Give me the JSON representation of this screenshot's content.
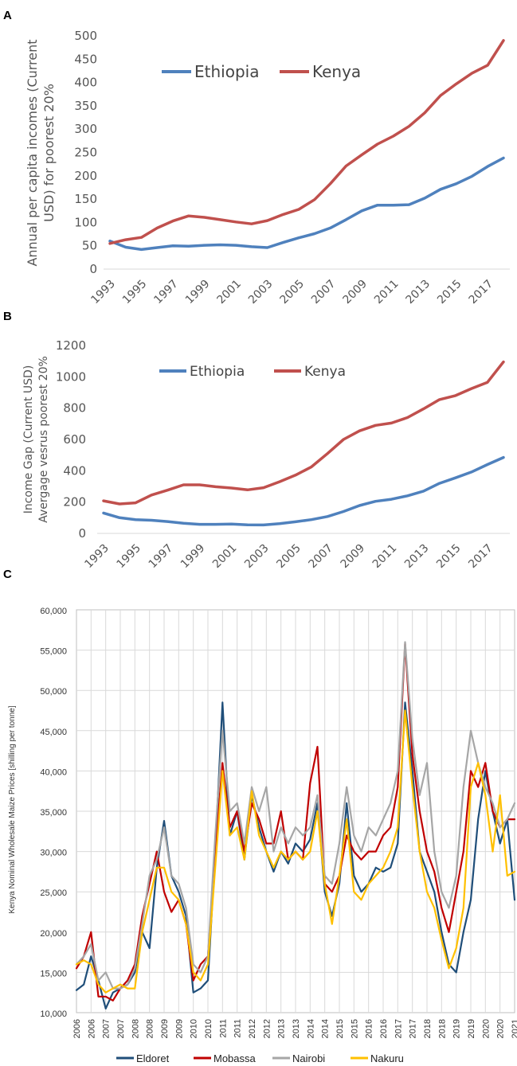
{
  "chart_data": [
    {
      "panel": "A",
      "type": "line",
      "title": "",
      "ylabel_lines": [
        "Annual per capita incomes (Current",
        "USD) for poorest 20%"
      ],
      "xlabel": "",
      "ylim": [
        0,
        500
      ],
      "yticks": [
        0,
        50,
        100,
        150,
        200,
        250,
        300,
        350,
        400,
        450,
        500
      ],
      "xlim": [
        1993,
        2018
      ],
      "xtick_labels": [
        "1993",
        "1995",
        "1997",
        "1999",
        "2001",
        "2003",
        "2005",
        "2007",
        "2009",
        "2011",
        "2013",
        "2015",
        "2017"
      ],
      "x": [
        1993,
        1994,
        1995,
        1996,
        1997,
        1998,
        1999,
        2000,
        2001,
        2002,
        2003,
        2004,
        2005,
        2006,
        2007,
        2008,
        2009,
        2010,
        2011,
        2012,
        2013,
        2014,
        2015,
        2016,
        2017,
        2018
      ],
      "series": [
        {
          "name": "Ethiopia",
          "color": "#4f81bd",
          "values": [
            60,
            47,
            42,
            46,
            50,
            49,
            51,
            52,
            51,
            48,
            46,
            57,
            67,
            76,
            88,
            106,
            125,
            137,
            137,
            138,
            152,
            171,
            183,
            199,
            220,
            238
          ]
        },
        {
          "name": "Kenya",
          "color": "#c0504d",
          "values": [
            55,
            63,
            68,
            88,
            103,
            114,
            111,
            106,
            101,
            97,
            104,
            117,
            128,
            149,
            183,
            221,
            245,
            268,
            285,
            306,
            335,
            372,
            397,
            420,
            437,
            490
          ]
        }
      ],
      "legend": "top-left"
    },
    {
      "panel": "B",
      "type": "line",
      "title": "",
      "ylabel_lines": [
        "Income Gap (Current USD)",
        "Avergage vesrus poorest 20%"
      ],
      "xlabel": "",
      "ylim": [
        0,
        1200
      ],
      "yticks": [
        0,
        200,
        400,
        600,
        800,
        1000,
        1200
      ],
      "xlim": [
        1993,
        2018
      ],
      "xtick_labels": [
        "1993",
        "1995",
        "1997",
        "1999",
        "2001",
        "2003",
        "2005",
        "2007",
        "2009",
        "2011",
        "2013",
        "2015",
        "2017"
      ],
      "x": [
        1993,
        1994,
        1995,
        1996,
        1997,
        1998,
        1999,
        2000,
        2001,
        2002,
        2003,
        2004,
        2005,
        2006,
        2007,
        2008,
        2009,
        2010,
        2011,
        2012,
        2013,
        2014,
        2015,
        2016,
        2017,
        2018
      ],
      "series": [
        {
          "name": "Ethiopia",
          "color": "#4f81bd",
          "values": [
            130,
            100,
            88,
            84,
            76,
            65,
            58,
            58,
            60,
            55,
            54,
            62,
            74,
            88,
            108,
            140,
            178,
            205,
            218,
            240,
            270,
            320,
            355,
            392,
            440,
            485
          ]
        },
        {
          "name": "Kenya",
          "color": "#c0504d",
          "values": [
            208,
            188,
            195,
            245,
            276,
            310,
            310,
            298,
            290,
            278,
            292,
            330,
            372,
            425,
            510,
            600,
            655,
            690,
            705,
            740,
            795,
            855,
            880,
            925,
            965,
            1095
          ]
        }
      ],
      "legend": "top-left"
    },
    {
      "panel": "C",
      "type": "line",
      "title": "",
      "ylabel": "Kenya Nominal Wholesale Maize Prices [shilling per tonne]",
      "xlabel": "",
      "ylim": [
        10000,
        60000
      ],
      "yticks": [
        10000,
        15000,
        20000,
        25000,
        30000,
        35000,
        40000,
        45000,
        50000,
        55000,
        60000
      ],
      "ytick_labels": [
        "10,000",
        "15,000",
        "20,000",
        "25,000",
        "30,000",
        "35,000",
        "40,000",
        "45,000",
        "50,000",
        "55,000",
        "60,000"
      ],
      "xlim": [
        2006.0,
        2021.0
      ],
      "xtick_labels": [
        "2006",
        "2006",
        "2007",
        "2007",
        "2008",
        "2008",
        "2009",
        "2009",
        "2010",
        "2010",
        "2011",
        "2011",
        "2012",
        "2012",
        "2013",
        "2013",
        "2014",
        "2014",
        "2015",
        "2015",
        "2016",
        "2016",
        "2017",
        "2017",
        "2018",
        "2018",
        "2019",
        "2019",
        "2020",
        "2020",
        "2021"
      ],
      "series": [
        {
          "name": "Eldoret",
          "color": "#1f4e79",
          "x": [
            2006.0,
            2006.25,
            2006.5,
            2006.75,
            2007.0,
            2007.25,
            2007.5,
            2007.75,
            2008.0,
            2008.25,
            2008.5,
            2008.75,
            2009.0,
            2009.25,
            2009.5,
            2009.75,
            2010.0,
            2010.25,
            2010.5,
            2010.75,
            2011.0,
            2011.25,
            2011.5,
            2011.75,
            2012.0,
            2012.25,
            2012.5,
            2012.75,
            2013.0,
            2013.25,
            2013.5,
            2013.75,
            2014.0,
            2014.25,
            2014.5,
            2014.75,
            2015.0,
            2015.25,
            2015.5,
            2015.75,
            2016.0,
            2016.25,
            2016.5,
            2016.75,
            2017.0,
            2017.25,
            2017.5,
            2017.75,
            2018.0,
            2018.25,
            2018.5,
            2018.75,
            2019.0,
            2019.25,
            2019.5,
            2019.75,
            2020.0,
            2020.25,
            2020.5,
            2020.75,
            2021.0
          ],
          "values": [
            12800,
            13500,
            17000,
            14000,
            10500,
            12500,
            13000,
            13500,
            15000,
            20000,
            18000,
            28000,
            33800,
            27000,
            25000,
            22000,
            12500,
            13000,
            14000,
            30000,
            48500,
            32000,
            35000,
            29000,
            37000,
            33000,
            30000,
            27500,
            30000,
            28500,
            31000,
            30000,
            31500,
            36000,
            25000,
            22000,
            26000,
            36000,
            27000,
            25000,
            26000,
            28000,
            27500,
            28000,
            31000,
            48500,
            40000,
            30000,
            27500,
            25000,
            20000,
            16000,
            15000,
            20000,
            24000,
            34000,
            40000,
            35000,
            31000,
            34000,
            24000
          ]
        },
        {
          "name": "Mobassa",
          "color": "#c00000",
          "x": [
            2006.0,
            2006.25,
            2006.5,
            2006.75,
            2007.0,
            2007.25,
            2007.5,
            2007.75,
            2008.0,
            2008.25,
            2008.5,
            2008.75,
            2009.0,
            2009.25,
            2009.5,
            2009.75,
            2010.0,
            2010.25,
            2010.5,
            2010.75,
            2011.0,
            2011.25,
            2011.5,
            2011.75,
            2012.0,
            2012.25,
            2012.5,
            2012.75,
            2013.0,
            2013.25,
            2013.5,
            2013.75,
            2014.0,
            2014.25,
            2014.5,
            2014.75,
            2015.0,
            2015.25,
            2015.5,
            2015.75,
            2016.0,
            2016.25,
            2016.5,
            2016.75,
            2017.0,
            2017.25,
            2017.5,
            2017.75,
            2018.0,
            2018.25,
            2018.5,
            2018.75,
            2019.0,
            2019.25,
            2019.5,
            2019.75,
            2020.0,
            2020.25,
            2020.5,
            2020.75,
            2021.0
          ],
          "values": [
            15500,
            17000,
            20000,
            12000,
            12000,
            11500,
            13000,
            14000,
            16000,
            22000,
            26000,
            30000,
            25000,
            22500,
            24000,
            21000,
            14000,
            16000,
            17000,
            30000,
            41000,
            33000,
            35000,
            30000,
            36000,
            34000,
            31000,
            31000,
            35000,
            29000,
            30000,
            29000,
            38500,
            43000,
            26000,
            25000,
            27000,
            32000,
            30000,
            29000,
            30000,
            30000,
            32000,
            33000,
            38000,
            55800,
            42000,
            35000,
            30000,
            27500,
            23000,
            20000,
            25000,
            30000,
            40000,
            38000,
            41000,
            35000,
            33000,
            34000,
            34000
          ]
        },
        {
          "name": "Nairobi",
          "color": "#a6a6a6",
          "x": [
            2006.0,
            2006.25,
            2006.5,
            2006.75,
            2007.0,
            2007.25,
            2007.5,
            2007.75,
            2008.0,
            2008.25,
            2008.5,
            2008.75,
            2009.0,
            2009.25,
            2009.5,
            2009.75,
            2010.0,
            2010.25,
            2010.5,
            2010.75,
            2011.0,
            2011.25,
            2011.5,
            2011.75,
            2012.0,
            2012.25,
            2012.5,
            2012.75,
            2013.0,
            2013.25,
            2013.5,
            2013.75,
            2014.0,
            2014.25,
            2014.5,
            2014.75,
            2015.0,
            2015.25,
            2015.5,
            2015.75,
            2016.0,
            2016.25,
            2016.5,
            2016.75,
            2017.0,
            2017.25,
            2017.5,
            2017.75,
            2018.0,
            2018.25,
            2018.5,
            2018.75,
            2019.0,
            2019.25,
            2019.5,
            2019.75,
            2020.0,
            2020.25,
            2020.5,
            2020.75,
            2021.0
          ],
          "values": [
            16000,
            17000,
            18500,
            14000,
            15000,
            13000,
            13000,
            13500,
            15500,
            21000,
            27000,
            29000,
            33000,
            27000,
            26000,
            23000,
            16000,
            15000,
            17000,
            32000,
            45000,
            35000,
            36000,
            31000,
            38000,
            35000,
            38000,
            30000,
            33000,
            31000,
            33000,
            32000,
            33000,
            37000,
            27000,
            26000,
            31000,
            38000,
            32000,
            30000,
            33000,
            32000,
            34000,
            36000,
            40000,
            56000,
            44000,
            37000,
            41000,
            30000,
            25000,
            23000,
            27000,
            38000,
            45000,
            41000,
            38000,
            36000,
            33000,
            34000,
            36000
          ]
        },
        {
          "name": "Nakuru",
          "color": "#ffc000",
          "x": [
            2006.0,
            2006.25,
            2006.5,
            2006.75,
            2007.0,
            2007.25,
            2007.5,
            2007.75,
            2008.0,
            2008.25,
            2008.5,
            2008.75,
            2009.0,
            2009.25,
            2009.5,
            2009.75,
            2010.0,
            2010.25,
            2010.5,
            2010.75,
            2011.0,
            2011.25,
            2011.5,
            2011.75,
            2012.0,
            2012.25,
            2012.5,
            2012.75,
            2013.0,
            2013.25,
            2013.5,
            2013.75,
            2014.0,
            2014.25,
            2014.5,
            2014.75,
            2015.0,
            2015.25,
            2015.5,
            2015.75,
            2016.0,
            2016.25,
            2016.5,
            2016.75,
            2017.0,
            2017.25,
            2017.5,
            2017.75,
            2018.0,
            2018.25,
            2018.5,
            2018.75,
            2019.0,
            2019.25,
            2019.5,
            2019.75,
            2020.0,
            2020.25,
            2020.5,
            2020.75,
            2021.0
          ],
          "values": [
            16000,
            16500,
            16000,
            13500,
            12500,
            13000,
            13500,
            13000,
            13000,
            20000,
            24000,
            28000,
            28000,
            25000,
            24000,
            21000,
            15000,
            14000,
            16000,
            28000,
            40000,
            32000,
            33000,
            29000,
            37500,
            32000,
            30000,
            28000,
            30000,
            29000,
            30000,
            29000,
            30000,
            35000,
            26000,
            21000,
            27000,
            34000,
            25000,
            24000,
            26000,
            27000,
            28000,
            30000,
            33000,
            47500,
            38000,
            30000,
            25000,
            23000,
            19000,
            15500,
            18000,
            23000,
            38000,
            41000,
            37000,
            30000,
            37000,
            27000,
            27500
          ]
        }
      ],
      "legend": "bottom"
    }
  ]
}
